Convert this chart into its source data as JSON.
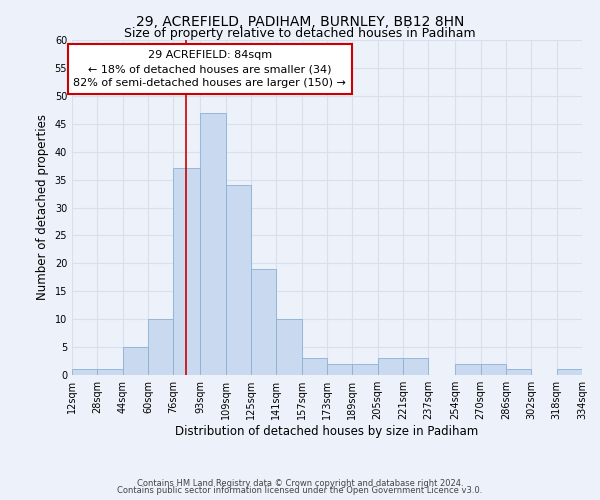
{
  "title": "29, ACREFIELD, PADIHAM, BURNLEY, BB12 8HN",
  "subtitle": "Size of property relative to detached houses in Padiham",
  "xlabel": "Distribution of detached houses by size in Padiham",
  "ylabel": "Number of detached properties",
  "bin_edges": [
    12,
    28,
    44,
    60,
    76,
    93,
    109,
    125,
    141,
    157,
    173,
    189,
    205,
    221,
    237,
    254,
    270,
    286,
    302,
    318,
    334
  ],
  "bin_labels": [
    "12sqm",
    "28sqm",
    "44sqm",
    "60sqm",
    "76sqm",
    "93sqm",
    "109sqm",
    "125sqm",
    "141sqm",
    "157sqm",
    "173sqm",
    "189sqm",
    "205sqm",
    "221sqm",
    "237sqm",
    "254sqm",
    "270sqm",
    "286sqm",
    "302sqm",
    "318sqm",
    "334sqm"
  ],
  "counts": [
    1,
    1,
    5,
    10,
    37,
    47,
    34,
    19,
    10,
    3,
    2,
    2,
    3,
    3,
    0,
    2,
    2,
    1,
    0,
    1
  ],
  "bar_color": "#c9d9f0",
  "bar_edge_color": "#8ab0d4",
  "vline_x": 84,
  "vline_color": "#cc0000",
  "annotation_title": "29 ACREFIELD: 84sqm",
  "annotation_line1": "← 18% of detached houses are smaller (34)",
  "annotation_line2": "82% of semi-detached houses are larger (150) →",
  "annotation_box_color": "#ffffff",
  "annotation_box_edge": "#cc0000",
  "ylim": [
    0,
    60
  ],
  "yticks": [
    0,
    5,
    10,
    15,
    20,
    25,
    30,
    35,
    40,
    45,
    50,
    55,
    60
  ],
  "footer1": "Contains HM Land Registry data © Crown copyright and database right 2024.",
  "footer2": "Contains public sector information licensed under the Open Government Licence v3.0.",
  "background_color": "#edf1f9",
  "grid_color": "#d8e0ef",
  "title_fontsize": 10,
  "subtitle_fontsize": 9,
  "axis_label_fontsize": 8.5,
  "tick_fontsize": 7,
  "footer_fontsize": 6,
  "annotation_fontsize": 8,
  "annotation_title_fontsize": 8.5
}
